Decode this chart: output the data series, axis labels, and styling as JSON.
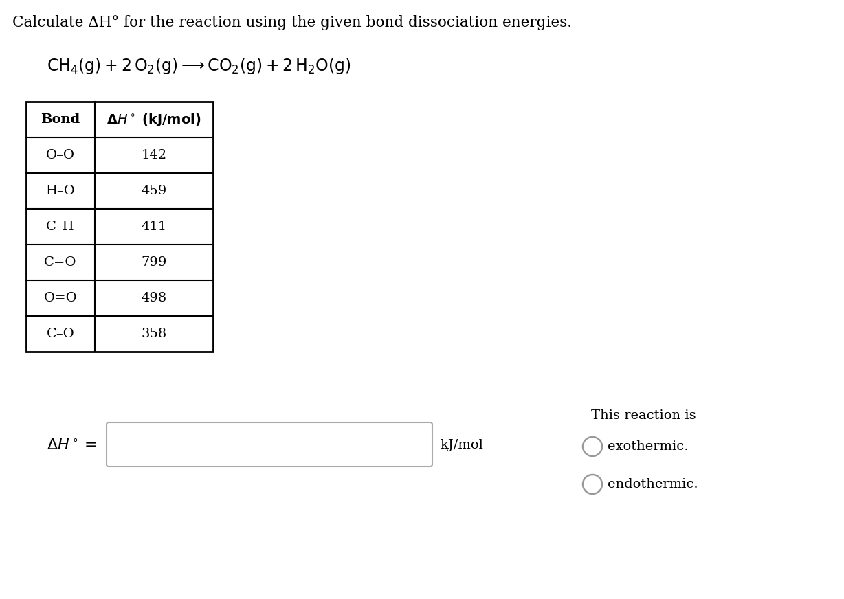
{
  "background_color": "#ffffff",
  "title_text": "Calculate ΔH° for the reaction using the given bond dissociation energies.",
  "title_fontsize": 15.5,
  "equation_fontsize": 17,
  "table_bonds": [
    "O–O",
    "H–O",
    "C–H",
    "C=O",
    "O=O",
    "C–O"
  ],
  "table_values": [
    "142",
    "459",
    "411",
    "799",
    "498",
    "358"
  ],
  "table_col_header_bond": "Bond",
  "table_col_header_dh": "ΔH° (kJ/mol)",
  "radio_color": "#999999",
  "text_color": "#000000"
}
